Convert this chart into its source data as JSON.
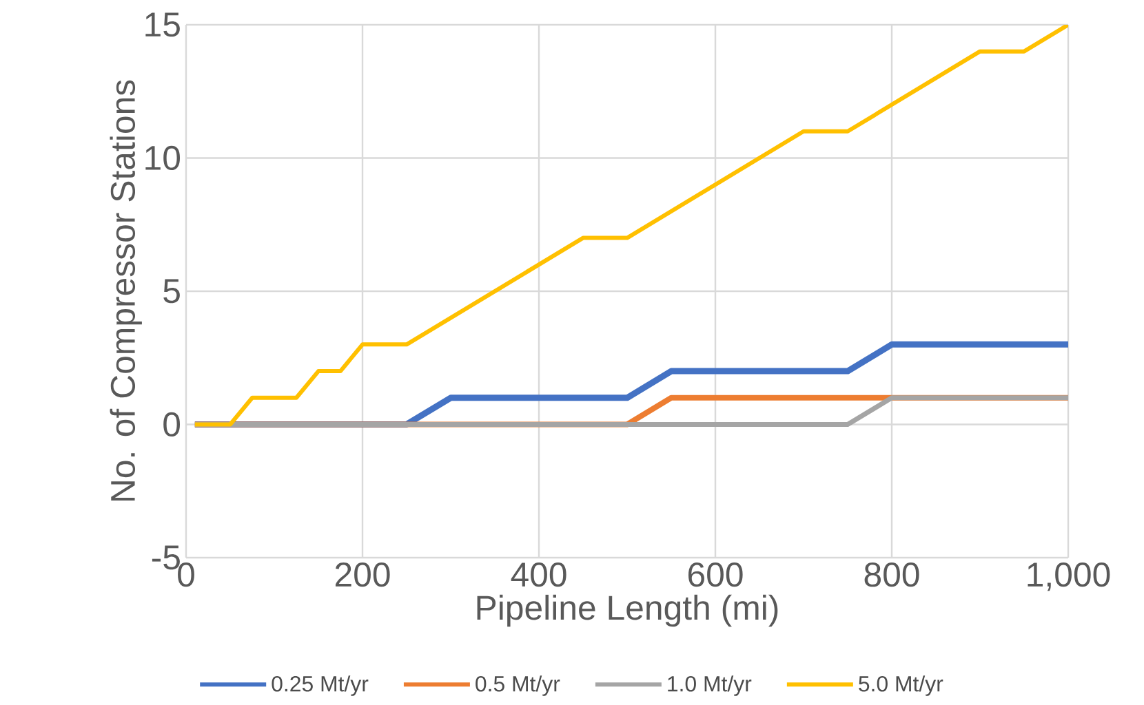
{
  "chart_data": {
    "type": "line",
    "xlabel": "Pipeline Length (mi)",
    "ylabel": "No. of Compressor Stations",
    "xlim": [
      0,
      1000
    ],
    "ylim": [
      -5,
      15
    ],
    "xticks": [
      0,
      200,
      400,
      600,
      800,
      {
        "value": 1000,
        "label": "1,000"
      }
    ],
    "yticks": [
      -5,
      0,
      5,
      10,
      15
    ],
    "grid": true,
    "legend": "bottom",
    "marker": "none",
    "line_style": "solid",
    "series": [
      {
        "name": "0.25 Mt/yr",
        "color": "#4472c4",
        "x": [
          10,
          250,
          300,
          500,
          550,
          750,
          800,
          1000
        ],
        "values": [
          0,
          0,
          1,
          1,
          2,
          2,
          3,
          3
        ]
      },
      {
        "name": "0.5 Mt/yr",
        "color": "#ed7d31",
        "x": [
          10,
          500,
          550,
          1000
        ],
        "values": [
          0,
          0,
          1,
          1
        ]
      },
      {
        "name": "1.0 Mt/yr",
        "color": "#a5a5a5",
        "x": [
          10,
          750,
          800,
          1000
        ],
        "values": [
          0,
          0,
          1,
          1
        ]
      },
      {
        "name": "5.0 Mt/yr",
        "color": "#ffc000",
        "x": [
          10,
          50,
          75,
          125,
          150,
          175,
          200,
          250,
          450,
          500,
          700,
          750,
          900,
          950,
          1000
        ],
        "values": [
          0,
          0,
          1,
          1,
          2,
          2,
          3,
          3,
          7,
          7,
          11,
          11,
          14,
          14,
          15
        ]
      }
    ]
  }
}
